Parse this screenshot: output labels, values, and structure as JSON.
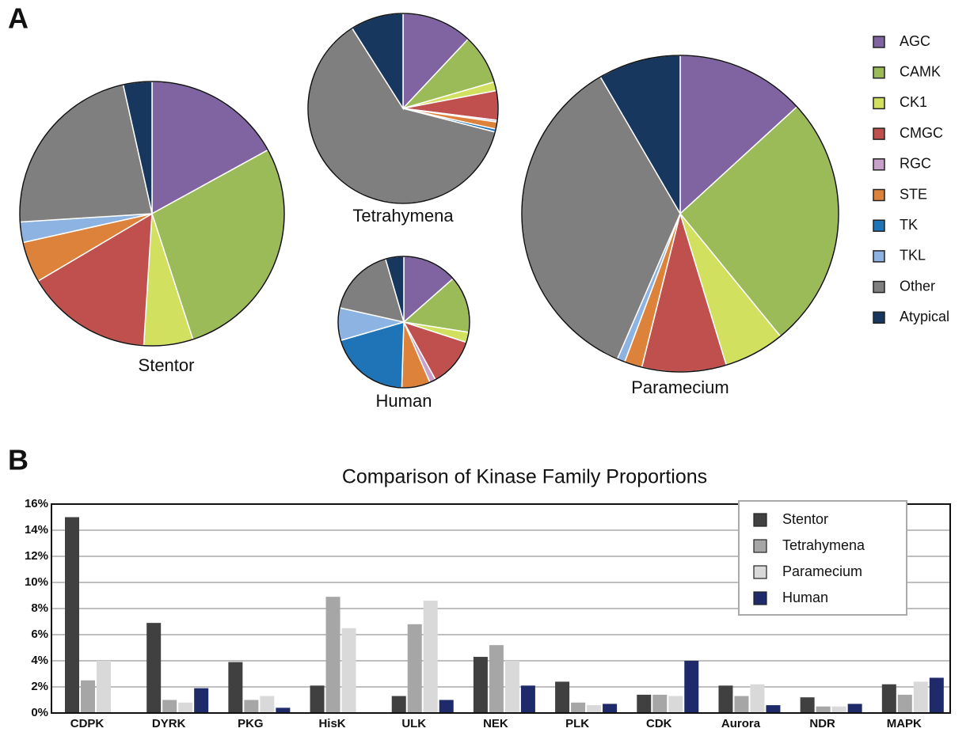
{
  "panels": [
    "A",
    "B"
  ],
  "chart_data": [
    {
      "type": "pie",
      "title": "Stentor",
      "categories": [
        "AGC",
        "CAMK",
        "CK1",
        "CMGC",
        "RGC",
        "STE",
        "TK",
        "TKL",
        "Other",
        "Atypical"
      ],
      "values": [
        17,
        28,
        6,
        15.5,
        0,
        5,
        0,
        2.5,
        22.5,
        3.5
      ],
      "colors": [
        "#8064a2",
        "#9bbb59",
        "#d2e05f",
        "#c0504d",
        "#c9a0c9",
        "#dd823b",
        "#1f73b7",
        "#8db3e2",
        "#7f7f7f",
        "#17375e"
      ],
      "legend": true
    },
    {
      "type": "pie",
      "title": "Tetrahymena",
      "categories": [
        "AGC",
        "CAMK",
        "CK1",
        "CMGC",
        "RGC",
        "STE",
        "TK",
        "TKL",
        "Other",
        "Atypical"
      ],
      "values": [
        12,
        8.5,
        1.5,
        5,
        0.3,
        1.2,
        0.5,
        0,
        62,
        9
      ],
      "colors": [
        "#8064a2",
        "#9bbb59",
        "#d2e05f",
        "#c0504d",
        "#c9a0c9",
        "#dd823b",
        "#1f73b7",
        "#8db3e2",
        "#7f7f7f",
        "#17375e"
      ]
    },
    {
      "type": "pie",
      "title": "Human",
      "categories": [
        "AGC",
        "CAMK",
        "CK1",
        "CMGC",
        "RGC",
        "STE",
        "TK",
        "TKL",
        "Other",
        "Atypical"
      ],
      "values": [
        13.5,
        14,
        2.5,
        12,
        1.5,
        7,
        20,
        8,
        17,
        4.5
      ],
      "colors": [
        "#8064a2",
        "#9bbb59",
        "#d2e05f",
        "#c0504d",
        "#c9a0c9",
        "#dd823b",
        "#1f73b7",
        "#8db3e2",
        "#7f7f7f",
        "#17375e"
      ]
    },
    {
      "type": "pie",
      "title": "Paramecium",
      "categories": [
        "AGC",
        "CAMK",
        "CK1",
        "CMGC",
        "RGC",
        "STE",
        "TK",
        "TKL",
        "Other",
        "Atypical"
      ],
      "values": [
        13.2,
        25.9,
        6.2,
        8.6,
        0,
        1.8,
        0,
        0.8,
        35.1,
        8.4
      ],
      "colors": [
        "#8064a2",
        "#9bbb59",
        "#d2e05f",
        "#c0504d",
        "#c9a0c9",
        "#dd823b",
        "#1f73b7",
        "#8db3e2",
        "#7f7f7f",
        "#17375e"
      ]
    },
    {
      "type": "bar",
      "title": "Comparison of Kinase Family Proportions",
      "categories": [
        "CDPK",
        "DYRK",
        "PKG",
        "HisK",
        "ULK",
        "NEK",
        "PLK",
        "CDK",
        "Aurora",
        "NDR",
        "MAPK"
      ],
      "series": [
        {
          "name": "Stentor",
          "color": "#404040",
          "values": [
            15,
            6.9,
            3.9,
            2.1,
            1.3,
            4.3,
            2.4,
            1.4,
            2.1,
            1.2,
            2.2
          ]
        },
        {
          "name": "Tetrahymena",
          "color": "#a6a6a6",
          "values": [
            2.5,
            1.0,
            1.0,
            8.9,
            6.8,
            5.2,
            0.8,
            1.4,
            1.3,
            0.5,
            1.4
          ]
        },
        {
          "name": "Paramecium",
          "color": "#d9d9d9",
          "values": [
            4.0,
            0.8,
            1.3,
            6.5,
            8.6,
            4.0,
            0.6,
            1.3,
            2.2,
            0.5,
            2.4
          ]
        },
        {
          "name": "Human",
          "color": "#1f2a6b",
          "values": [
            0,
            1.9,
            0.4,
            0,
            1.0,
            2.1,
            0.7,
            4.0,
            0.6,
            0.7,
            2.7
          ]
        }
      ],
      "ylim": [
        0,
        16
      ],
      "yticks": [
        {
          "value": 0,
          "label": "0%"
        },
        {
          "value": 2,
          "label": "2%"
        },
        {
          "value": 4,
          "label": "4%"
        },
        {
          "value": 6,
          "label": "6%"
        },
        {
          "value": 8,
          "label": "8%"
        },
        {
          "value": 10,
          "label": "10%"
        },
        {
          "value": 12,
          "label": "12%"
        },
        {
          "value": 14,
          "label": "14%"
        },
        {
          "value": 16,
          "label": "16%"
        }
      ],
      "grid": true,
      "legend": "upper right"
    }
  ]
}
